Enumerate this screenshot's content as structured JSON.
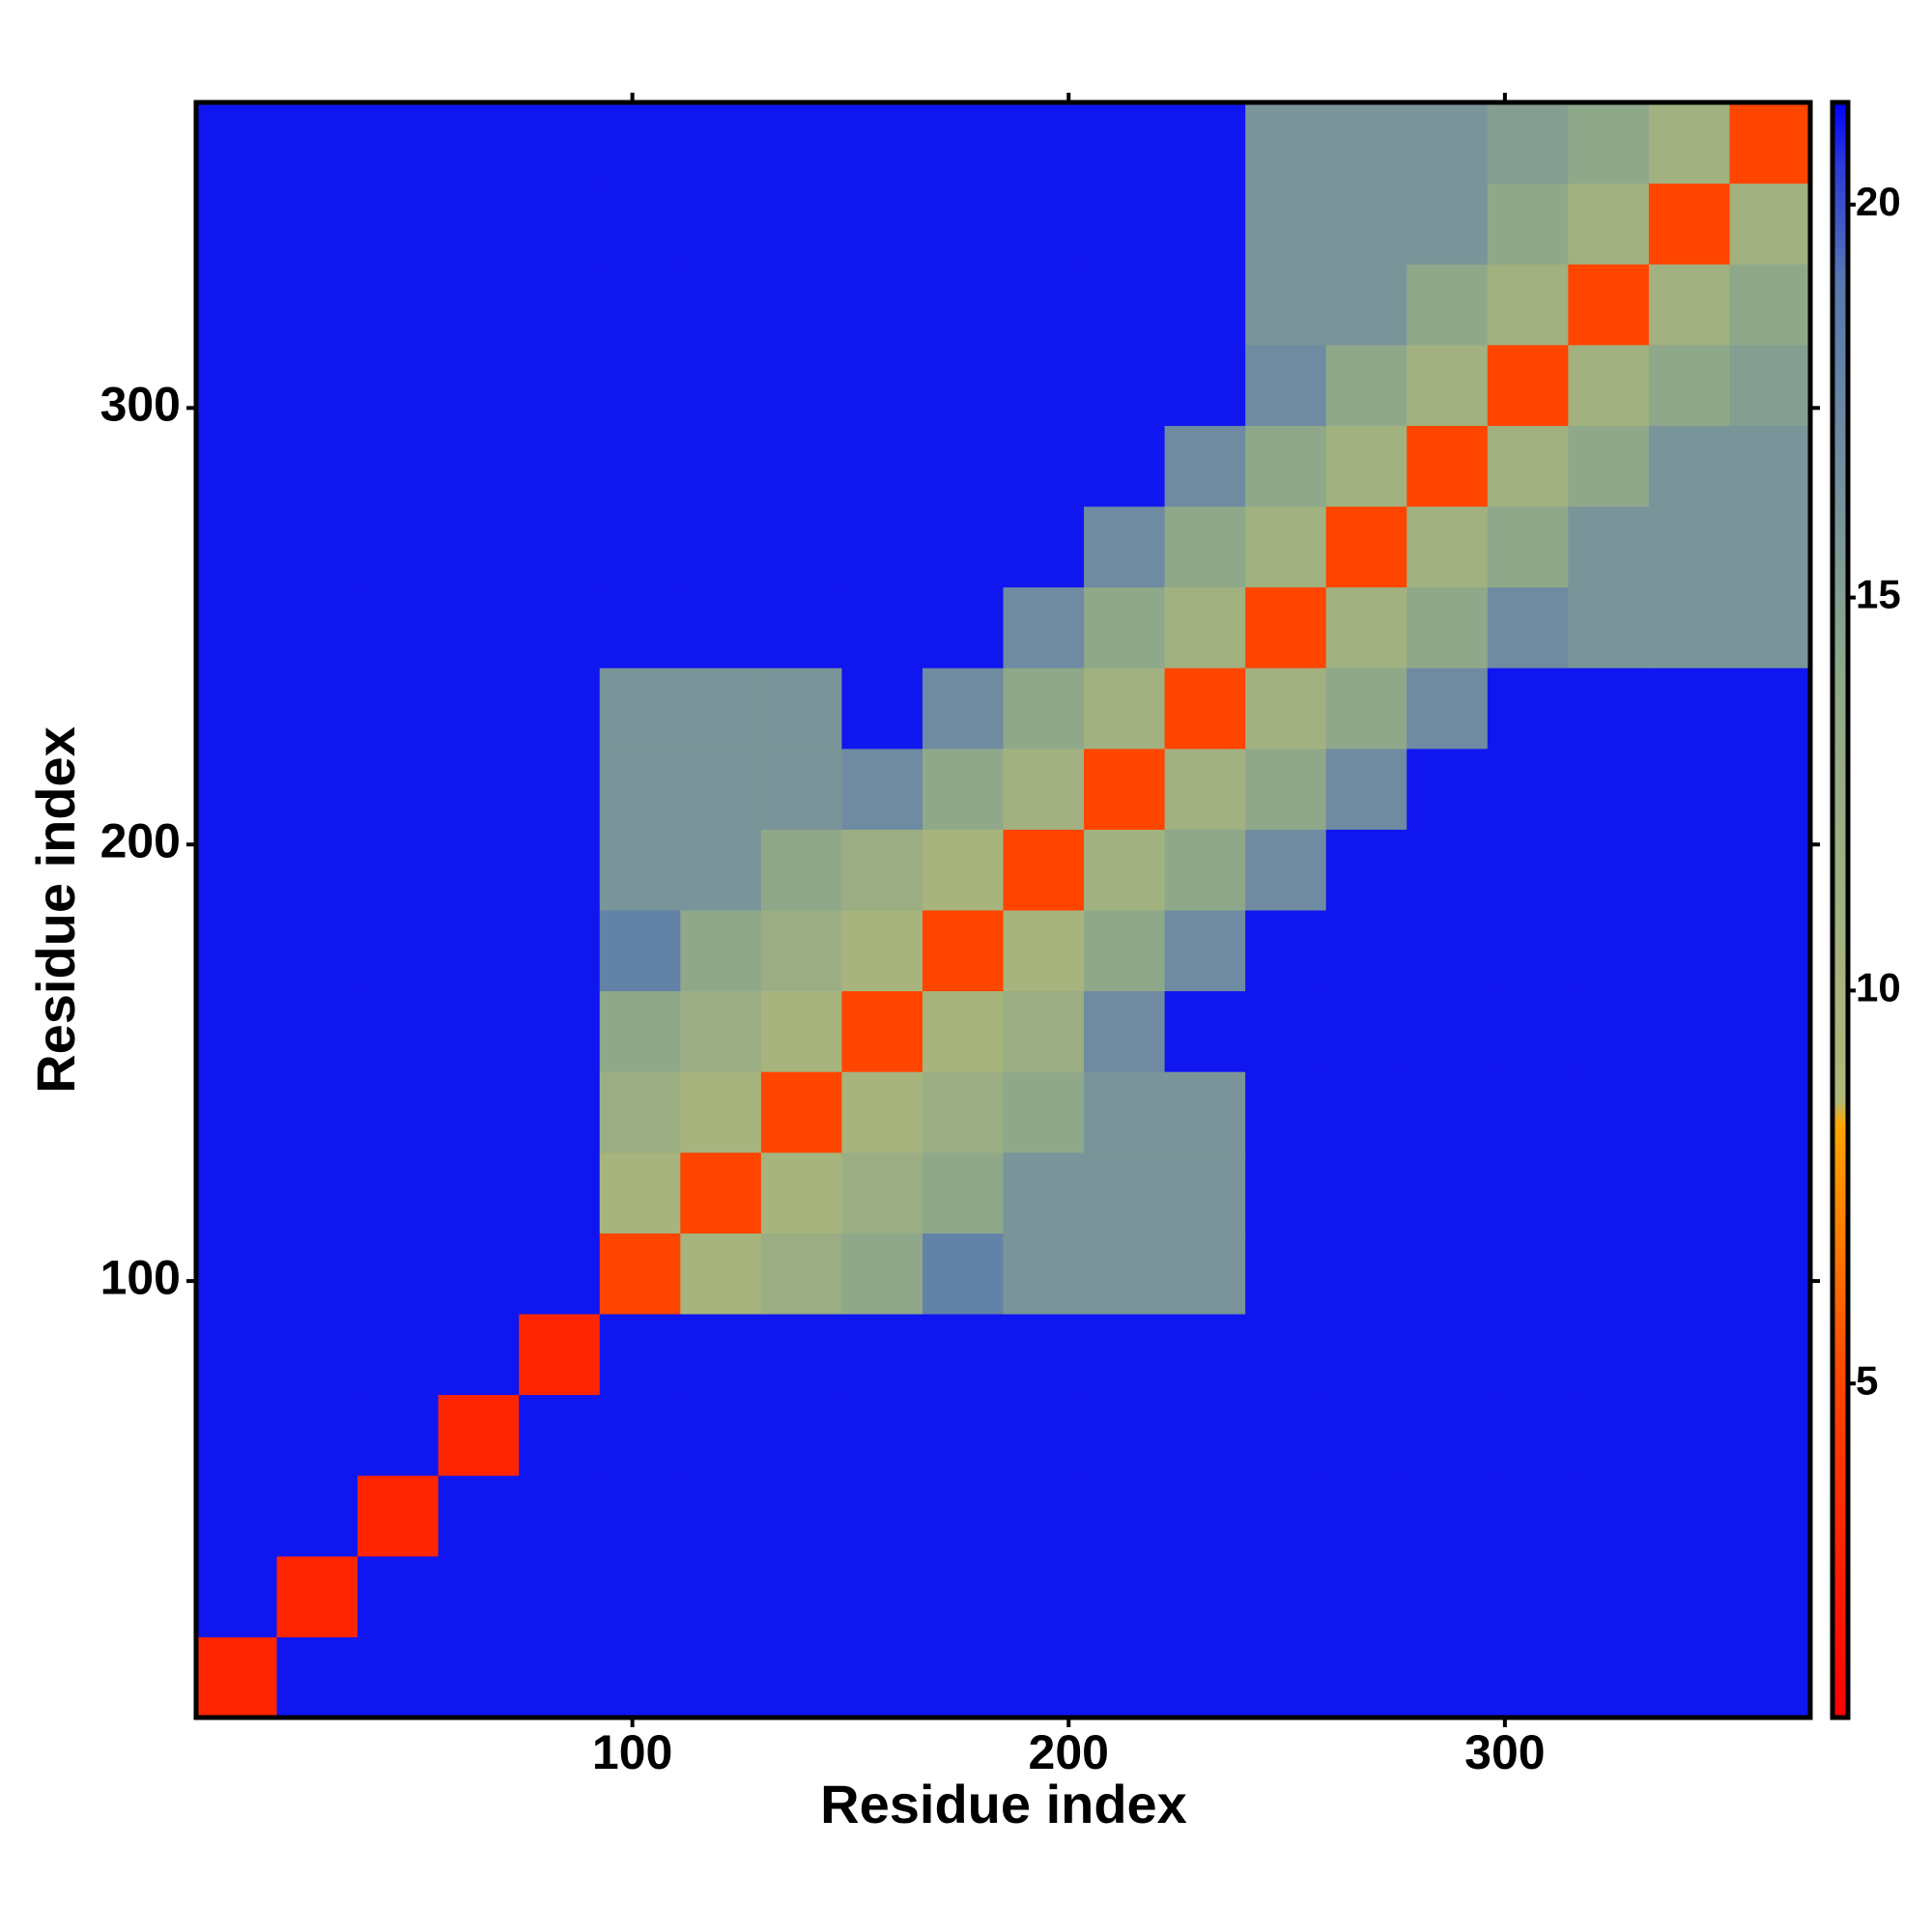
{
  "chart_data": {
    "type": "heatmap",
    "xlabel": "Residue index",
    "ylabel": "Residue index",
    "xbins": [
      0,
      18.5,
      37,
      55.5,
      74,
      92.5,
      111,
      129.5,
      148,
      166.5,
      185,
      203.5,
      222,
      240.5,
      259,
      277.5,
      296,
      314.5,
      333,
      351.5,
      370
    ],
    "ybins": [
      0,
      18.5,
      37,
      55.5,
      74,
      92.5,
      111,
      129.5,
      148,
      166.5,
      185,
      203.5,
      222,
      240.5,
      259,
      277.5,
      296,
      314.5,
      333,
      351.5,
      370
    ],
    "z": [
      [
        3,
        21,
        21,
        21,
        21,
        21,
        21,
        21,
        21,
        21,
        21,
        21,
        21,
        21,
        21,
        21,
        21,
        21,
        21,
        21
      ],
      [
        21,
        3,
        21,
        21,
        21,
        21,
        21,
        21,
        21,
        21,
        21,
        21,
        21,
        21,
        21,
        21,
        21,
        21,
        21,
        21
      ],
      [
        21,
        21,
        3,
        21,
        21,
        21,
        21,
        21,
        21,
        21,
        21,
        21,
        21,
        21,
        21,
        21,
        21,
        21,
        21,
        21
      ],
      [
        21,
        21,
        21,
        3,
        21,
        21,
        21,
        21,
        21,
        21,
        21,
        21,
        21,
        21,
        21,
        21,
        21,
        21,
        21,
        21
      ],
      [
        21,
        21,
        21,
        21,
        3,
        21,
        21,
        21,
        21,
        21,
        21,
        21,
        21,
        21,
        21,
        21,
        21,
        21,
        21,
        21
      ],
      [
        21,
        21,
        21,
        21,
        21,
        5,
        10,
        12,
        14,
        18,
        16,
        16,
        16,
        21,
        21,
        21,
        21,
        21,
        21,
        21
      ],
      [
        21,
        21,
        21,
        21,
        21,
        10,
        5,
        10,
        12,
        14,
        16,
        16,
        16,
        21,
        21,
        21,
        21,
        21,
        21,
        21
      ],
      [
        21,
        21,
        21,
        21,
        21,
        12,
        10,
        5,
        10,
        12,
        14,
        16,
        16,
        21,
        21,
        21,
        21,
        21,
        21,
        21
      ],
      [
        21,
        21,
        21,
        21,
        21,
        14,
        12,
        10,
        5,
        10,
        12,
        17,
        21,
        21,
        21,
        21,
        21,
        21,
        21,
        21
      ],
      [
        21,
        21,
        21,
        21,
        21,
        18,
        14,
        12,
        10,
        5,
        10,
        14,
        17,
        21,
        21,
        21,
        21,
        21,
        21,
        21
      ],
      [
        21,
        21,
        21,
        21,
        21,
        16,
        16,
        14,
        12,
        10,
        5,
        11,
        14,
        17,
        21,
        21,
        21,
        21,
        21,
        21
      ],
      [
        21,
        21,
        21,
        21,
        21,
        16,
        16,
        16,
        17,
        14,
        11,
        5,
        11,
        14,
        17,
        21,
        21,
        21,
        21,
        21
      ],
      [
        21,
        21,
        21,
        21,
        21,
        16,
        16,
        16,
        21,
        17,
        14,
        11,
        5,
        11,
        14,
        17,
        21,
        21,
        21,
        21
      ],
      [
        21,
        21,
        21,
        21,
        21,
        21,
        21,
        21,
        21,
        21,
        17,
        14,
        11,
        5,
        11,
        14,
        17,
        16,
        16,
        16
      ],
      [
        21,
        21,
        21,
        21,
        21,
        21,
        21,
        21,
        21,
        21,
        21,
        17,
        14,
        11,
        5,
        11,
        14,
        16,
        16,
        16
      ],
      [
        21,
        21,
        21,
        21,
        21,
        21,
        21,
        21,
        21,
        21,
        21,
        21,
        17,
        14,
        11,
        5,
        11,
        14,
        16,
        16
      ],
      [
        21,
        21,
        21,
        21,
        21,
        21,
        21,
        21,
        21,
        21,
        21,
        21,
        21,
        17,
        14,
        11,
        5,
        11,
        14,
        15
      ],
      [
        21,
        21,
        21,
        21,
        21,
        21,
        21,
        21,
        21,
        21,
        21,
        21,
        21,
        16,
        16,
        14,
        11,
        5,
        11,
        14
      ],
      [
        21,
        21,
        21,
        21,
        21,
        21,
        21,
        21,
        21,
        21,
        21,
        21,
        21,
        16,
        16,
        16,
        14,
        11,
        5,
        11
      ],
      [
        21,
        21,
        21,
        21,
        21,
        21,
        21,
        21,
        21,
        21,
        21,
        21,
        21,
        16,
        16,
        16,
        15,
        14,
        11,
        5
      ]
    ],
    "xlim": [
      0,
      370
    ],
    "ylim": [
      0,
      370
    ],
    "xticks": [
      100,
      200,
      300
    ],
    "yticks": [
      100,
      200,
      300
    ],
    "zlim": [
      0.75,
      21.3
    ],
    "zticks": [
      5,
      10,
      15,
      20
    ],
    "colorscale": [
      [
        0.75,
        "#ff0000"
      ],
      [
        5,
        "#ff4500"
      ],
      [
        8.3,
        "#ffa500"
      ],
      [
        8.6,
        "#b0b878"
      ],
      [
        14,
        "#8fa88a"
      ],
      [
        19,
        "#5878b0"
      ],
      [
        20.5,
        "#2a3ad8"
      ],
      [
        21.3,
        "#0000ff"
      ]
    ]
  }
}
